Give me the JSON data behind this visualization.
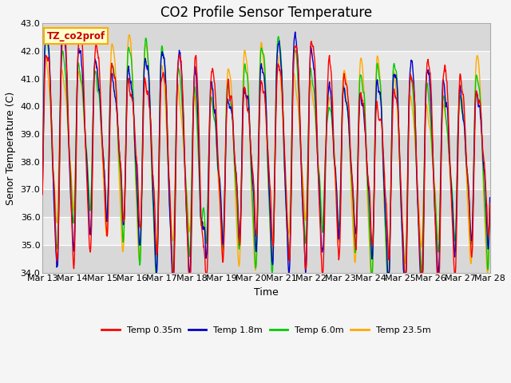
{
  "title": "CO2 Profile Sensor Temperature",
  "ylabel": "Senor Temperature (C)",
  "xlabel": "Time",
  "ylim": [
    34.0,
    43.0
  ],
  "yticks": [
    34.0,
    35.0,
    36.0,
    37.0,
    38.0,
    39.0,
    40.0,
    41.0,
    42.0,
    43.0
  ],
  "xtick_labels": [
    "Mar 13",
    "Mar 14",
    "Mar 15",
    "Mar 16",
    "Mar 17",
    "Mar 18",
    "Mar 19",
    "Mar 20",
    "Mar 21",
    "Mar 22",
    "Mar 23",
    "Mar 24",
    "Mar 25",
    "Mar 26",
    "Mar 27",
    "Mar 28"
  ],
  "legend_title": "TZ_co2prof",
  "line_labels": [
    "Temp 0.35m",
    "Temp 1.8m",
    "Temp 6.0m",
    "Temp 23.5m"
  ],
  "line_colors": [
    "#ff0000",
    "#0000cc",
    "#00cc00",
    "#ffaa00"
  ],
  "fig_bg_color": "#f5f5f5",
  "plot_bg_color": "#e8e8e8",
  "title_fontsize": 12,
  "axis_fontsize": 9,
  "tick_fontsize": 8,
  "n_days": 15,
  "figsize": [
    6.4,
    4.8
  ],
  "dpi": 100
}
